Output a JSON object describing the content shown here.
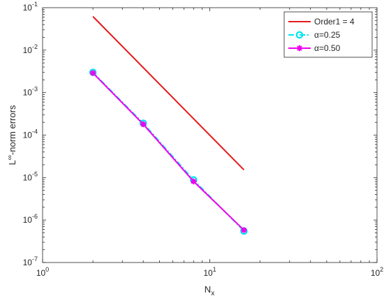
{
  "chart_data": {
    "type": "line",
    "x_scale": "log",
    "y_scale": "log",
    "xlim": [
      1,
      100
    ],
    "ylim": [
      1e-07,
      0.1
    ],
    "grid": false,
    "legend_position": "top-right",
    "xlabel": {
      "base": "N",
      "subscript": "x"
    },
    "ylabel": {
      "base": "L",
      "superscript": "∞",
      "rest": "-norm errors"
    },
    "x_ticks": [
      {
        "value": 1,
        "base": "10",
        "exp": "0"
      },
      {
        "value": 10,
        "base": "10",
        "exp": "1"
      },
      {
        "value": 100,
        "base": "10",
        "exp": "2"
      }
    ],
    "y_ticks": [
      {
        "value": 1e-07,
        "base": "10",
        "exp": "-7"
      },
      {
        "value": 1e-06,
        "base": "10",
        "exp": "-6"
      },
      {
        "value": 1e-05,
        "base": "10",
        "exp": "-5"
      },
      {
        "value": 0.0001,
        "base": "10",
        "exp": "-4"
      },
      {
        "value": 0.001,
        "base": "10",
        "exp": "-3"
      },
      {
        "value": 0.01,
        "base": "10",
        "exp": "-2"
      },
      {
        "value": 0.1,
        "base": "10",
        "exp": "-1"
      }
    ],
    "series": [
      {
        "name": "Order1 = 4",
        "color": "#e41a1c",
        "style": "solid",
        "marker": "none",
        "x": [
          2,
          16
        ],
        "y": [
          0.062,
          1.52e-05
        ]
      },
      {
        "name": "α=0.25",
        "color": "#00e5ee",
        "style": "dashdot",
        "marker": "circle",
        "x": [
          2,
          4,
          8,
          16
        ],
        "y": [
          0.003,
          0.00019,
          8.8e-06,
          5.5e-07
        ]
      },
      {
        "name": "α=0.50",
        "color": "#ee00ee",
        "style": "solid",
        "marker": "asterisk",
        "x": [
          2,
          4,
          8,
          16
        ],
        "y": [
          0.0029,
          0.00018,
          8.1e-06,
          5.8e-07
        ]
      }
    ]
  }
}
